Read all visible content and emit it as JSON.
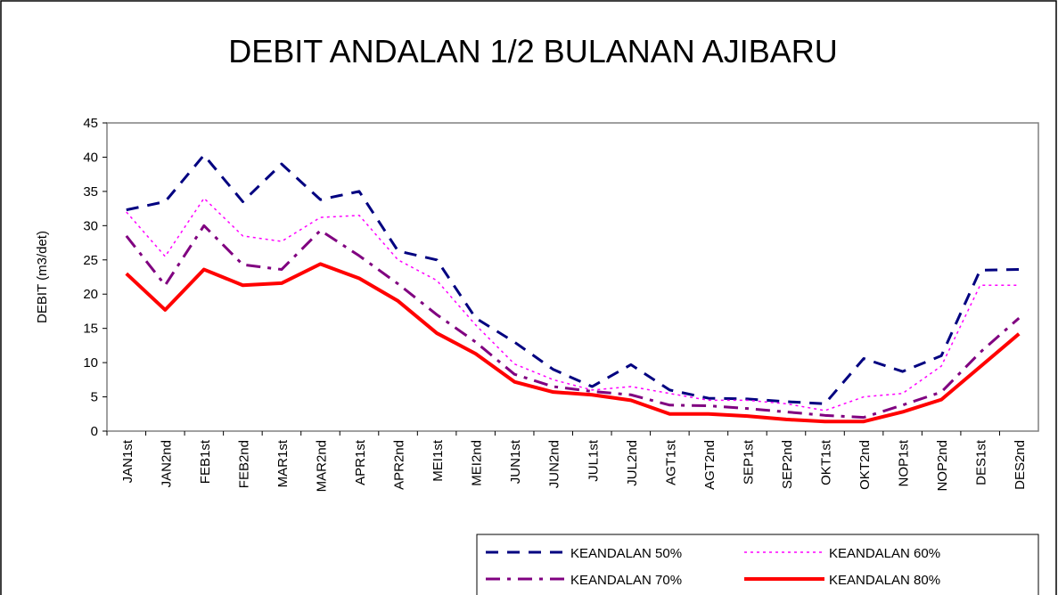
{
  "chart_data": {
    "type": "line",
    "title": "DEBIT ANDALAN 1/2 BULANAN AJIBARU",
    "y_label": "DEBIT (m3/det)",
    "categories": [
      "JAN1st",
      "JAN2nd",
      "FEB1st",
      "FEB2nd",
      "MAR1st",
      "MAR2nd",
      "APR1st",
      "APR2nd",
      "MEI1st",
      "MEI2nd",
      "JUN1st",
      "JUN2nd",
      "JUL1st",
      "JUL2nd",
      "AGT1st",
      "AGT2nd",
      "SEP1st",
      "SEP2nd",
      "OKT1st",
      "OKT2nd",
      "NOP1st",
      "NOP2nd",
      "DES1st",
      "DES2nd"
    ],
    "ylim": [
      0,
      45
    ],
    "yticks": [
      0,
      5,
      10,
      15,
      20,
      25,
      30,
      35,
      40,
      45
    ],
    "grid": false,
    "legend": "bottom-right",
    "series": [
      {
        "name": "KEANDALAN 50%",
        "color": "#000080",
        "line_style": "dashed",
        "values": [
          32.3,
          33.5,
          40.3,
          33.5,
          39,
          33.8,
          35,
          26.3,
          25,
          16.5,
          13,
          9,
          6.5,
          9.7,
          6,
          4.8,
          4.7,
          4.3,
          4,
          10.6,
          8.7,
          11,
          23.5,
          23.6
        ]
      },
      {
        "name": "KEANDALAN 60%",
        "color": "#ff00ff",
        "line_style": "dotted",
        "values": [
          32,
          25.5,
          34,
          28.5,
          27.7,
          31.2,
          31.5,
          25,
          22,
          15.5,
          9.8,
          7.5,
          6,
          6.5,
          5.5,
          4.5,
          4.5,
          4,
          3,
          5,
          5.5,
          9.5,
          21.3,
          21.3
        ]
      },
      {
        "name": "KEANDALAN 70%",
        "color": "#800080",
        "line_style": "dashdot",
        "values": [
          28.5,
          21.3,
          30,
          24.3,
          23.6,
          29.3,
          25.6,
          21.5,
          17,
          13,
          8.3,
          6.5,
          5.8,
          5.3,
          3.8,
          3.7,
          3.3,
          2.8,
          2.3,
          2,
          3.8,
          5.7,
          11.5,
          16.5
        ]
      },
      {
        "name": "KEANDALAN 80%",
        "color": "#ff0000",
        "line_style": "solid",
        "values": [
          23,
          17.7,
          23.6,
          21.3,
          21.6,
          24.4,
          22.3,
          19,
          14.3,
          11.3,
          7.2,
          5.7,
          5.3,
          4.5,
          2.5,
          2.5,
          2.2,
          1.7,
          1.4,
          1.4,
          2.8,
          4.6,
          9.4,
          14.2
        ]
      }
    ]
  }
}
